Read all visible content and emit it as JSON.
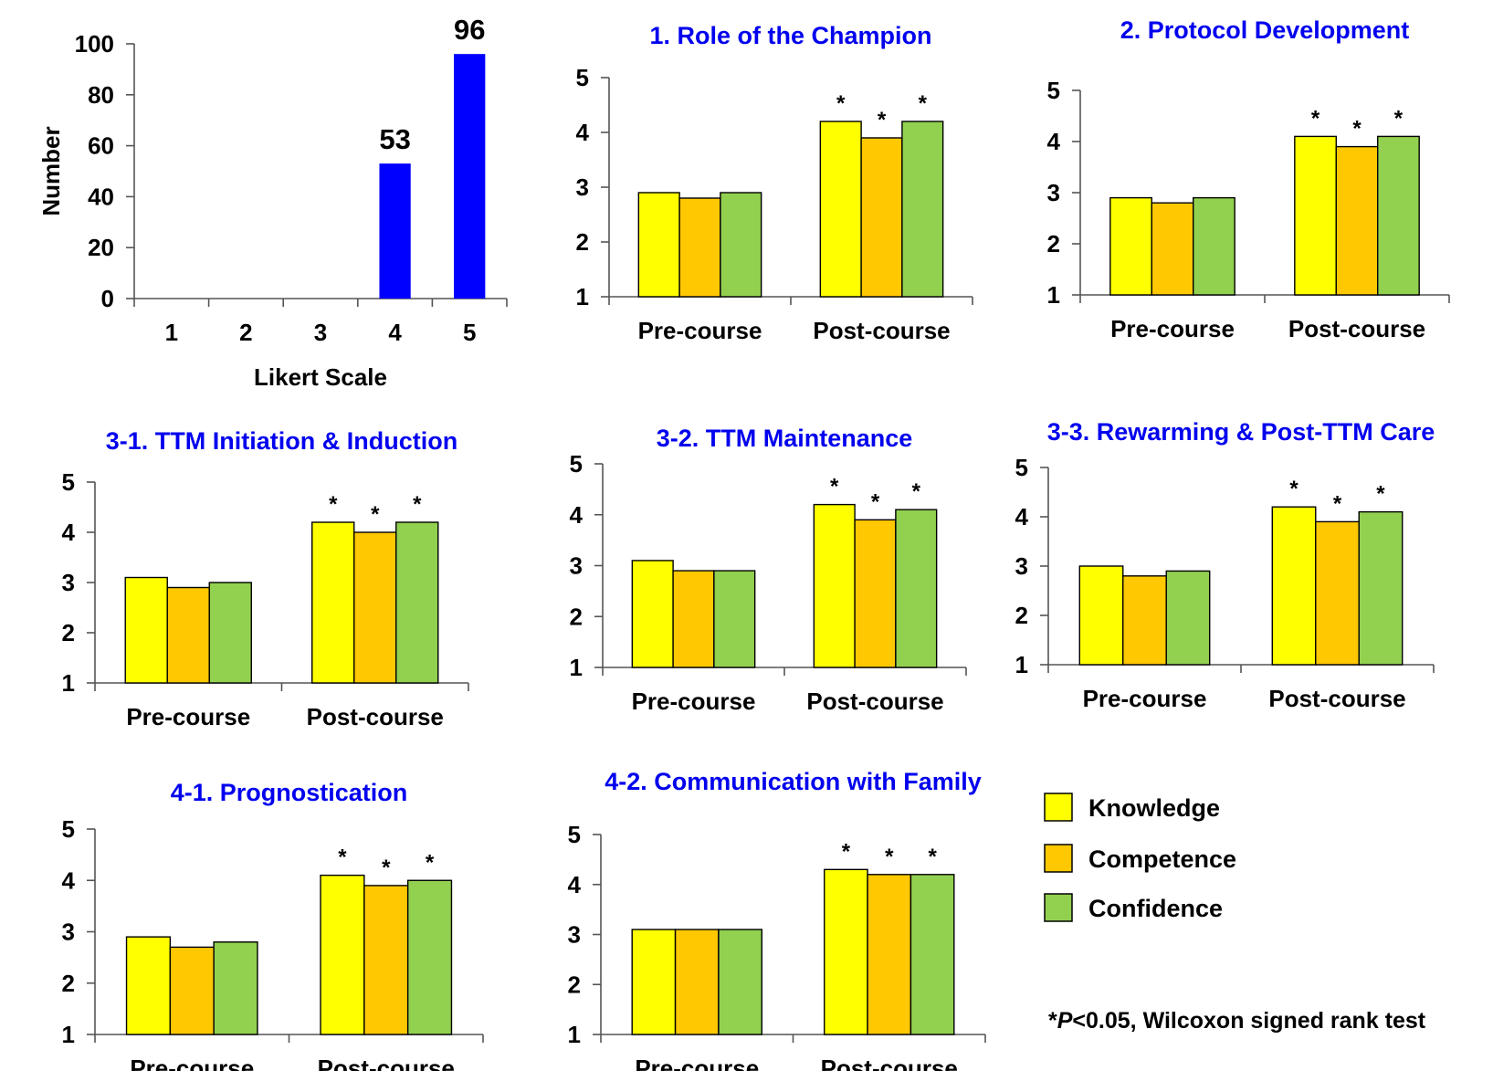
{
  "colors": {
    "title": "#0000ee",
    "histogram_bar": "#0000ff",
    "knowledge": "#ffff00",
    "competence": "#ffc800",
    "confidence": "#92d050"
  },
  "legend": {
    "items": [
      {
        "label": "Knowledge",
        "color": "#ffff00"
      },
      {
        "label": "Competence",
        "color": "#ffc800"
      },
      {
        "label": "Confidence",
        "color": "#92d050"
      }
    ],
    "footnote_star": "*",
    "footnote_p": "P",
    "footnote_rest": "<0.05, Wilcoxon signed rank test"
  },
  "chart_data": [
    {
      "id": "likert",
      "type": "bar",
      "title": "",
      "xlabel": "Likert Scale",
      "ylabel": "Number",
      "categories": [
        "1",
        "2",
        "3",
        "4",
        "5"
      ],
      "values": [
        0,
        0,
        0,
        53,
        96
      ],
      "data_labels": [
        "",
        "",
        "",
        "53",
        "96"
      ],
      "ylim": [
        0,
        100
      ],
      "yticks": [
        0,
        20,
        40,
        60,
        80,
        100
      ]
    },
    {
      "id": "champion",
      "type": "bar",
      "title": "1. Role of the Champion",
      "categories": [
        "Pre-course",
        "Post-course"
      ],
      "series": [
        {
          "name": "Knowledge",
          "values": [
            2.9,
            4.2
          ]
        },
        {
          "name": "Competence",
          "values": [
            2.8,
            3.9
          ]
        },
        {
          "name": "Confidence",
          "values": [
            2.9,
            4.2
          ]
        }
      ],
      "significant_markers": [
        "",
        "*"
      ],
      "ylim": [
        1,
        5
      ],
      "yticks": [
        1,
        2,
        3,
        4,
        5
      ]
    },
    {
      "id": "protocol",
      "type": "bar",
      "title": "2. Protocol Development",
      "categories": [
        "Pre-course",
        "Post-course"
      ],
      "series": [
        {
          "name": "Knowledge",
          "values": [
            2.9,
            4.1
          ]
        },
        {
          "name": "Competence",
          "values": [
            2.8,
            3.9
          ]
        },
        {
          "name": "Confidence",
          "values": [
            2.9,
            4.1
          ]
        }
      ],
      "significant_markers": [
        "",
        "*"
      ],
      "ylim": [
        1,
        5
      ],
      "yticks": [
        1,
        2,
        3,
        4,
        5
      ]
    },
    {
      "id": "initiation",
      "type": "bar",
      "title": "3-1. TTM Initiation & Induction",
      "categories": [
        "Pre-course",
        "Post-course"
      ],
      "series": [
        {
          "name": "Knowledge",
          "values": [
            3.1,
            4.2
          ]
        },
        {
          "name": "Competence",
          "values": [
            2.9,
            4.0
          ]
        },
        {
          "name": "Confidence",
          "values": [
            3.0,
            4.2
          ]
        }
      ],
      "significant_markers": [
        "",
        "*"
      ],
      "ylim": [
        1,
        5
      ],
      "yticks": [
        1,
        2,
        3,
        4,
        5
      ]
    },
    {
      "id": "maintenance",
      "type": "bar",
      "title": "3-2. TTM Maintenance",
      "categories": [
        "Pre-course",
        "Post-course"
      ],
      "series": [
        {
          "name": "Knowledge",
          "values": [
            3.1,
            4.2
          ]
        },
        {
          "name": "Competence",
          "values": [
            2.9,
            3.9
          ]
        },
        {
          "name": "Confidence",
          "values": [
            2.9,
            4.1
          ]
        }
      ],
      "significant_markers": [
        "",
        "*"
      ],
      "ylim": [
        1,
        5
      ],
      "yticks": [
        1,
        2,
        3,
        4,
        5
      ]
    },
    {
      "id": "rewarming",
      "type": "bar",
      "title": "3-3. Rewarming & Post-TTM Care",
      "categories": [
        "Pre-course",
        "Post-course"
      ],
      "series": [
        {
          "name": "Knowledge",
          "values": [
            3.0,
            4.2
          ]
        },
        {
          "name": "Competence",
          "values": [
            2.8,
            3.9
          ]
        },
        {
          "name": "Confidence",
          "values": [
            2.9,
            4.1
          ]
        }
      ],
      "significant_markers": [
        "",
        "*"
      ],
      "ylim": [
        1,
        5
      ],
      "yticks": [
        1,
        2,
        3,
        4,
        5
      ]
    },
    {
      "id": "prognostication",
      "type": "bar",
      "title": "4-1. Prognostication",
      "categories": [
        "Pre-course",
        "Post-course"
      ],
      "series": [
        {
          "name": "Knowledge",
          "values": [
            2.9,
            4.1
          ]
        },
        {
          "name": "Competence",
          "values": [
            2.7,
            3.9
          ]
        },
        {
          "name": "Confidence",
          "values": [
            2.8,
            4.0
          ]
        }
      ],
      "significant_markers": [
        "",
        "*"
      ],
      "ylim": [
        1,
        5
      ],
      "yticks": [
        1,
        2,
        3,
        4,
        5
      ]
    },
    {
      "id": "communication",
      "type": "bar",
      "title": "4-2. Communication with Family",
      "categories": [
        "Pre-course",
        "Post-course"
      ],
      "series": [
        {
          "name": "Knowledge",
          "values": [
            3.1,
            4.3
          ]
        },
        {
          "name": "Competence",
          "values": [
            3.1,
            4.2
          ]
        },
        {
          "name": "Confidence",
          "values": [
            3.1,
            4.2
          ]
        }
      ],
      "significant_markers": [
        "",
        "*"
      ],
      "ylim": [
        1,
        5
      ],
      "yticks": [
        1,
        2,
        3,
        4,
        5
      ]
    }
  ]
}
